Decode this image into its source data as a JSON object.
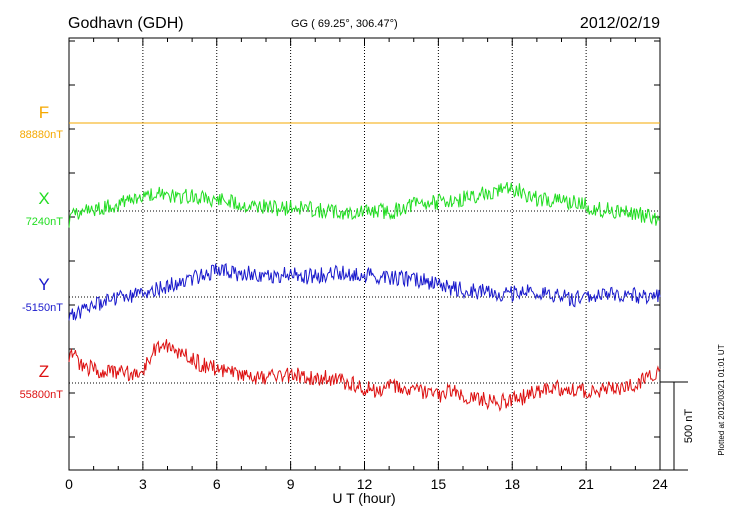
{
  "header": {
    "station": "Godhavn (GDH)",
    "coords": "GG ( 69.25°, 306.47°)",
    "date": "2012/02/19"
  },
  "footer_note": "Plotted at 2012/03/21 01:01  UT",
  "scale_bar": {
    "label": "500 nT",
    "value_nT": 500
  },
  "colors": {
    "F": "#f5a800",
    "X": "#22dd22",
    "Y": "#1a1acc",
    "Z": "#dd1111",
    "axis": "#000000"
  },
  "chart_data": {
    "type": "line",
    "title": "",
    "xlabel": "U T (hour)",
    "xlim": [
      0,
      24
    ],
    "xticks": [
      "0",
      "3",
      "6",
      "9",
      "12",
      "15",
      "18",
      "21",
      "24"
    ],
    "grid": "dotted vertical every 3 h; dotted horizontal at each component baseline",
    "series": [
      {
        "name": "F",
        "baseline_label": "88880nT",
        "baseline": 88880,
        "x": [
          0,
          24
        ],
        "y": [
          88880,
          88880
        ]
      },
      {
        "name": "X",
        "baseline_label": "7240nT",
        "baseline": 7240,
        "x": [
          0,
          0.1,
          0.5,
          1,
          1.5,
          2,
          2.5,
          3,
          3.5,
          4,
          4.5,
          5,
          5.5,
          6,
          6.5,
          7,
          7.5,
          8,
          8.5,
          9,
          9.5,
          10,
          10.5,
          11,
          11.5,
          12,
          12.5,
          13,
          13.5,
          14,
          14.5,
          15,
          15.5,
          16,
          16.5,
          17,
          17.5,
          18,
          18.5,
          19,
          19.5,
          20,
          20.5,
          21,
          21.5,
          22,
          22.5,
          23,
          23.5,
          24
        ],
        "y": [
          7150,
          7200,
          7240,
          7250,
          7265,
          7280,
          7300,
          7330,
          7340,
          7330,
          7320,
          7335,
          7310,
          7300,
          7290,
          7270,
          7265,
          7260,
          7250,
          7260,
          7255,
          7245,
          7240,
          7225,
          7225,
          7230,
          7240,
          7230,
          7255,
          7275,
          7285,
          7290,
          7300,
          7310,
          7330,
          7350,
          7360,
          7370,
          7340,
          7310,
          7300,
          7295,
          7285,
          7270,
          7245,
          7250,
          7230,
          7225,
          7210,
          7190
        ]
      },
      {
        "name": "Y",
        "baseline_label": "-5150nT",
        "baseline": -5150,
        "x": [
          0,
          0.1,
          0.5,
          1,
          1.5,
          2,
          2.5,
          3,
          3.5,
          4,
          4.5,
          5,
          5.5,
          6,
          6.5,
          7,
          7.5,
          8,
          8.5,
          9,
          9.5,
          10,
          10.5,
          11,
          11.5,
          12,
          12.5,
          13,
          13.5,
          14,
          14.5,
          15,
          15.5,
          16,
          16.5,
          17,
          17.5,
          18,
          18.5,
          19,
          19.5,
          20,
          20.5,
          21,
          21.5,
          22,
          22.5,
          23,
          23.5,
          24
        ],
        "y": [
          -5290,
          -5260,
          -5230,
          -5200,
          -5180,
          -5160,
          -5150,
          -5130,
          -5110,
          -5090,
          -5060,
          -5040,
          -5020,
          -5000,
          -5010,
          -5020,
          -5010,
          -5030,
          -5030,
          -5020,
          -5040,
          -5030,
          -5020,
          -5010,
          -5020,
          -5020,
          -5030,
          -5040,
          -5040,
          -5050,
          -5060,
          -5080,
          -5100,
          -5110,
          -5120,
          -5120,
          -5130,
          -5130,
          -5120,
          -5130,
          -5130,
          -5150,
          -5160,
          -5150,
          -5150,
          -5140,
          -5140,
          -5140,
          -5150,
          -5150
        ]
      },
      {
        "name": "Z",
        "baseline_label": "55800nT",
        "baseline": 55800,
        "x": [
          0,
          0.1,
          0.5,
          1,
          1.5,
          2,
          2.5,
          3,
          3.2,
          3.5,
          4,
          4.5,
          5,
          5.5,
          6,
          6.5,
          7,
          7.5,
          8,
          8.5,
          9,
          9.5,
          10,
          10.5,
          11,
          11.5,
          12,
          12.5,
          13,
          13.5,
          14,
          14.5,
          15,
          15.5,
          16,
          16.5,
          17,
          17.5,
          18,
          18.5,
          19,
          19.5,
          20,
          20.5,
          21,
          21.5,
          22,
          22.5,
          23,
          23.5,
          24
        ],
        "y": [
          55900,
          55990,
          55900,
          55880,
          55860,
          55860,
          55850,
          55870,
          55930,
          55990,
          56010,
          55970,
          55930,
          55900,
          55880,
          55870,
          55850,
          55830,
          55830,
          55840,
          55850,
          55840,
          55830,
          55830,
          55810,
          55800,
          55770,
          55760,
          55780,
          55760,
          55750,
          55740,
          55730,
          55750,
          55730,
          55720,
          55700,
          55690,
          55710,
          55720,
          55750,
          55770,
          55770,
          55760,
          55750,
          55760,
          55770,
          55770,
          55790,
          55830,
          55880
        ]
      }
    ]
  }
}
